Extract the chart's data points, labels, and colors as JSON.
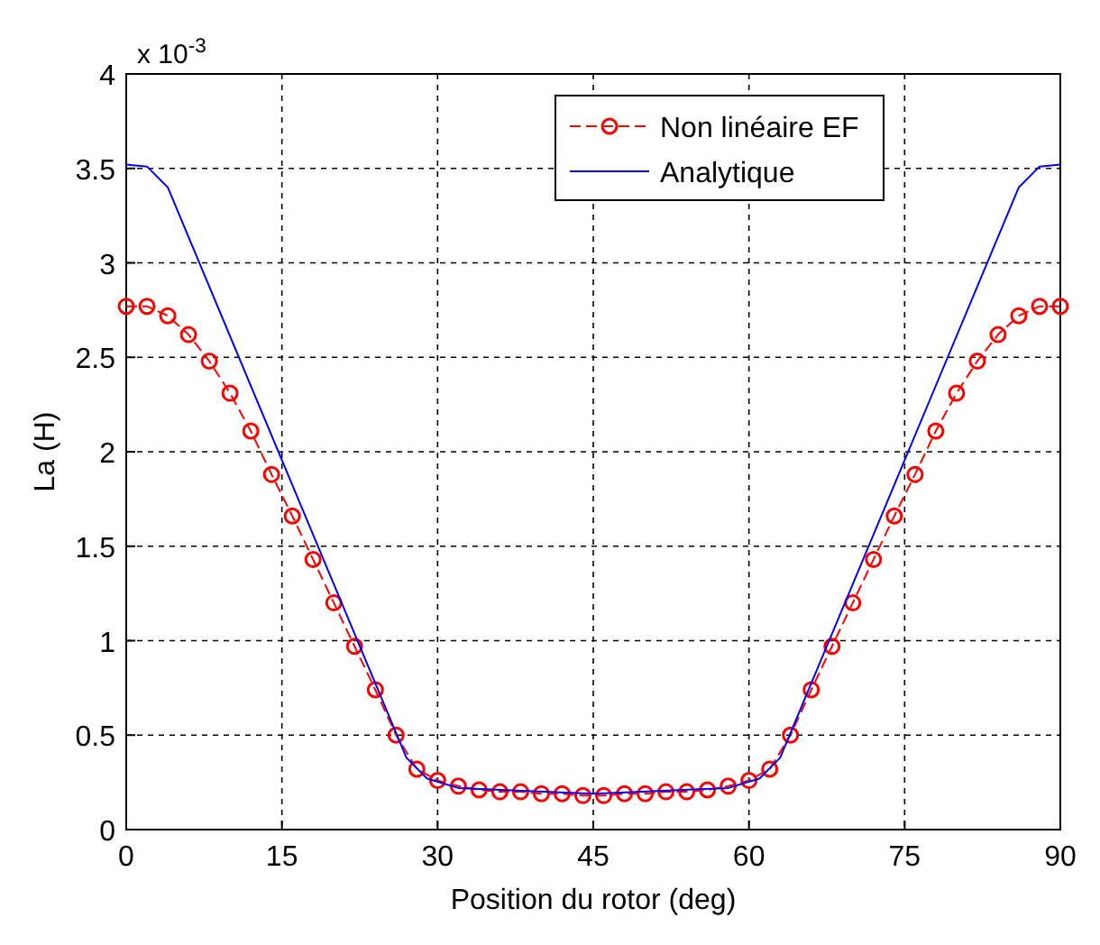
{
  "chart_data": {
    "type": "line",
    "xlabel": "Position du rotor (deg)",
    "ylabel": "La (H)",
    "annotations": [
      "x 10$^{-3}$"
    ],
    "xlim": [
      0,
      90
    ],
    "xticks": [
      0,
      15,
      30,
      45,
      60,
      75,
      90
    ],
    "ylim": [
      0,
      4
    ],
    "yticks": [
      0,
      0.5,
      1,
      1.5,
      2,
      2.5,
      3,
      3.5,
      4
    ],
    "grid": true,
    "legend": "top",
    "series": [
      {
        "name": "Non linéaire EF",
        "color": "#ff0000",
        "marker": "circle",
        "line_style": "dashed",
        "x": [
          0,
          2,
          4,
          6,
          8,
          10,
          12,
          14,
          16,
          18,
          20,
          22,
          24,
          26,
          28,
          30,
          32,
          34,
          36,
          38,
          40,
          42,
          44,
          46,
          48,
          50,
          52,
          54,
          56,
          58,
          60,
          62,
          64,
          66,
          68,
          70,
          72,
          74,
          76,
          78,
          80,
          82,
          84,
          86,
          88,
          90
        ],
        "values": [
          2.77,
          2.77,
          2.72,
          2.62,
          2.48,
          2.31,
          2.11,
          1.88,
          1.66,
          1.43,
          1.2,
          0.97,
          0.74,
          0.5,
          0.32,
          0.26,
          0.23,
          0.21,
          0.2,
          0.2,
          0.19,
          0.19,
          0.18,
          0.18,
          0.19,
          0.19,
          0.2,
          0.2,
          0.21,
          0.23,
          0.26,
          0.32,
          0.5,
          0.74,
          0.97,
          1.2,
          1.43,
          1.66,
          1.88,
          2.11,
          2.31,
          2.48,
          2.62,
          2.72,
          2.77,
          2.77
        ]
      },
      {
        "name": "Analytique",
        "color": "#0000ff",
        "marker": "none",
        "line_style": "solid",
        "x": [
          0,
          2,
          4,
          27,
          29,
          32,
          45,
          58,
          61,
          63,
          86,
          88,
          90
        ],
        "values": [
          3.52,
          3.51,
          3.4,
          0.38,
          0.27,
          0.22,
          0.19,
          0.22,
          0.27,
          0.38,
          3.4,
          3.51,
          3.52
        ]
      }
    ]
  }
}
